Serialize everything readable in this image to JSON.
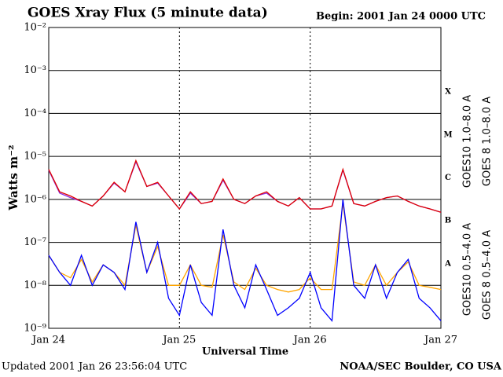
{
  "chart_data": {
    "type": "line",
    "title": "GOES Xray Flux (5 minute data)",
    "subtitle": "Begin:  2001 Jan 24 0000 UTC",
    "y_label": "Watts m⁻²",
    "x_label": "Universal Time",
    "footer_left": "Updated 2001 Jan 26 23:56:04 UTC",
    "footer_right": "NOAA/SEC Boulder, CO USA",
    "y_scale": "log",
    "ylim": [
      1e-09,
      0.01
    ],
    "yticks": [
      {
        "value": 1e-09,
        "label": "10⁻⁹"
      },
      {
        "value": 1e-08,
        "label": "10⁻⁸"
      },
      {
        "value": 1e-07,
        "label": "10⁻⁷"
      },
      {
        "value": 1e-06,
        "label": "10⁻⁶"
      },
      {
        "value": 1e-05,
        "label": "10⁻⁵"
      },
      {
        "value": 0.0001,
        "label": "10⁻⁴"
      },
      {
        "value": 0.001,
        "label": "10⁻³"
      },
      {
        "value": 0.01,
        "label": "10⁻²"
      }
    ],
    "xlim": [
      "2001-01-24T00:00Z",
      "2001-01-27T00:00Z"
    ],
    "xticks": [
      {
        "value": "2001-01-24T00:00Z",
        "label": "Jan 24"
      },
      {
        "value": "2001-01-25T00:00Z",
        "label": "Jan 25"
      },
      {
        "value": "2001-01-26T00:00Z",
        "label": "Jan 26"
      },
      {
        "value": "2001-01-27T00:00Z",
        "label": "Jan 27"
      }
    ],
    "grid": true,
    "flare_classes": [
      "X",
      "M",
      "C",
      "B",
      "A"
    ],
    "x": [
      "2001-01-24T00:00Z",
      "2001-01-24T02:00Z",
      "2001-01-24T04:00Z",
      "2001-01-24T06:00Z",
      "2001-01-24T08:00Z",
      "2001-01-24T10:00Z",
      "2001-01-24T12:00Z",
      "2001-01-24T14:00Z",
      "2001-01-24T16:00Z",
      "2001-01-24T18:00Z",
      "2001-01-24T20:00Z",
      "2001-01-24T22:00Z",
      "2001-01-25T00:00Z",
      "2001-01-25T02:00Z",
      "2001-01-25T04:00Z",
      "2001-01-25T06:00Z",
      "2001-01-25T08:00Z",
      "2001-01-25T10:00Z",
      "2001-01-25T12:00Z",
      "2001-01-25T14:00Z",
      "2001-01-25T16:00Z",
      "2001-01-25T18:00Z",
      "2001-01-25T20:00Z",
      "2001-01-25T22:00Z",
      "2001-01-26T00:00Z",
      "2001-01-26T02:00Z",
      "2001-01-26T04:00Z",
      "2001-01-26T06:00Z",
      "2001-01-26T08:00Z",
      "2001-01-26T10:00Z",
      "2001-01-26T12:00Z",
      "2001-01-26T14:00Z",
      "2001-01-26T16:00Z",
      "2001-01-26T18:00Z",
      "2001-01-26T20:00Z",
      "2001-01-26T22:00Z",
      "2001-01-27T00:00Z"
    ],
    "series": [
      {
        "name": "GOES10 1.0–8.0 A",
        "color": "#8a2be2",
        "values": [
          4.8e-06,
          1.4e-06,
          1.1e-06,
          9e-07,
          7e-07,
          1.2e-06,
          2.4e-06,
          1.5e-06,
          7.5e-06,
          2e-06,
          2.4e-06,
          1.2e-06,
          6e-07,
          1.4e-06,
          8e-07,
          9e-07,
          2.8e-06,
          1e-06,
          8e-07,
          1.2e-06,
          1.4e-06,
          9e-07,
          7e-07,
          1.1e-06,
          6e-07,
          6e-07,
          7e-07,
          4.8e-06,
          8e-07,
          7e-07,
          9e-07,
          1.1e-06,
          1.2e-06,
          9e-07,
          7e-07,
          6e-07,
          5e-07
        ]
      },
      {
        "name": "GOES 8 1.0–8.0 A",
        "color": "#e00000",
        "values": [
          5e-06,
          1.5e-06,
          1.2e-06,
          9e-07,
          7e-07,
          1.2e-06,
          2.5e-06,
          1.5e-06,
          8e-06,
          2e-06,
          2.5e-06,
          1.2e-06,
          6e-07,
          1.5e-06,
          8e-07,
          9e-07,
          3e-06,
          1e-06,
          8e-07,
          1.2e-06,
          1.5e-06,
          9e-07,
          7e-07,
          1.1e-06,
          6e-07,
          6e-07,
          7e-07,
          5e-06,
          8e-07,
          7e-07,
          9e-07,
          1.1e-06,
          1.2e-06,
          9e-07,
          7e-07,
          6e-07,
          5e-07
        ]
      },
      {
        "name": "GOES10 0.5–4.0 A",
        "color": "#ffa500",
        "values": [
          5e-08,
          2e-08,
          1.5e-08,
          4e-08,
          1.2e-08,
          3e-08,
          2e-08,
          1e-08,
          2.5e-07,
          2e-08,
          8e-08,
          1e-08,
          1e-08,
          3e-08,
          1e-08,
          9e-09,
          1.5e-07,
          1.2e-08,
          8e-09,
          2.5e-08,
          1e-08,
          8e-09,
          7e-09,
          8e-09,
          1.5e-08,
          8e-09,
          8e-09,
          8e-07,
          1.2e-08,
          1e-08,
          3e-08,
          1e-08,
          2e-08,
          3.5e-08,
          1e-08,
          9e-09,
          8e-09
        ]
      },
      {
        "name": "GOES 8 0.5–4.0 A",
        "color": "#0000ff",
        "values": [
          5e-08,
          2e-08,
          1e-08,
          5e-08,
          1e-08,
          3e-08,
          2e-08,
          8e-09,
          3e-07,
          2e-08,
          1e-07,
          5e-09,
          2e-09,
          3e-08,
          4e-09,
          2e-09,
          2e-07,
          1e-08,
          3e-09,
          3e-08,
          8e-09,
          2e-09,
          3e-09,
          5e-09,
          2e-08,
          3e-09,
          1.5e-09,
          1e-06,
          1e-08,
          5e-09,
          3e-08,
          5e-09,
          2e-08,
          4e-08,
          5e-09,
          3e-09,
          1.5e-09
        ]
      }
    ]
  }
}
